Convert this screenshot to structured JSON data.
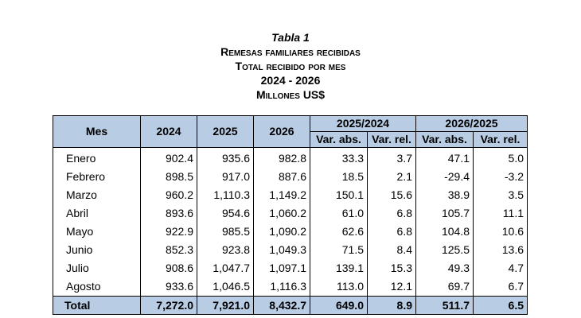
{
  "caption": {
    "table_number": "Tabla 1",
    "line1": "Remesas familiares recibidas",
    "line2": "Total recibido por mes",
    "line3": "2024 - 2026",
    "line4": "Millones US$"
  },
  "header": {
    "mes": "Mes",
    "y2024": "2024",
    "y2025": "2025",
    "y2026": "2026",
    "group1": "2025/2024",
    "group2": "2026/2025",
    "var_abs": "Var. abs.",
    "var_rel": "Var. rel."
  },
  "rows": [
    {
      "mes": "Enero",
      "v2024": "902.4",
      "v2025": "935.6",
      "v2026": "982.8",
      "abs1": "33.3",
      "rel1": "3.7",
      "abs2": "47.1",
      "rel2": "5.0"
    },
    {
      "mes": "Febrero",
      "v2024": "898.5",
      "v2025": "917.0",
      "v2026": "887.6",
      "abs1": "18.5",
      "rel1": "2.1",
      "abs2": "-29.4",
      "rel2": "-3.2"
    },
    {
      "mes": "Marzo",
      "v2024": "960.2",
      "v2025": "1,110.3",
      "v2026": "1,149.2",
      "abs1": "150.1",
      "rel1": "15.6",
      "abs2": "38.9",
      "rel2": "3.5"
    },
    {
      "mes": "Abril",
      "v2024": "893.6",
      "v2025": "954.6",
      "v2026": "1,060.2",
      "abs1": "61.0",
      "rel1": "6.8",
      "abs2": "105.7",
      "rel2": "11.1"
    },
    {
      "mes": "Mayo",
      "v2024": "922.9",
      "v2025": "985.5",
      "v2026": "1,090.2",
      "abs1": "62.6",
      "rel1": "6.8",
      "abs2": "104.8",
      "rel2": "10.6"
    },
    {
      "mes": "Junio",
      "v2024": "852.3",
      "v2025": "923.8",
      "v2026": "1,049.3",
      "abs1": "71.5",
      "rel1": "8.4",
      "abs2": "125.5",
      "rel2": "13.6"
    },
    {
      "mes": "Julio",
      "v2024": "908.6",
      "v2025": "1,047.7",
      "v2026": "1,097.1",
      "abs1": "139.1",
      "rel1": "15.3",
      "abs2": "49.3",
      "rel2": "4.7"
    },
    {
      "mes": "Agosto",
      "v2024": "933.6",
      "v2025": "1,046.5",
      "v2026": "1,116.3",
      "abs1": "113.0",
      "rel1": "12.1",
      "abs2": "69.7",
      "rel2": "6.7"
    }
  ],
  "total": {
    "mes": "Total",
    "v2024": "7,272.0",
    "v2025": "7,921.0",
    "v2026": "8,432.7",
    "abs1": "649.0",
    "rel1": "8.9",
    "abs2": "511.7",
    "rel2": "6.5"
  },
  "colors": {
    "header_fill": "#b8cce4"
  }
}
